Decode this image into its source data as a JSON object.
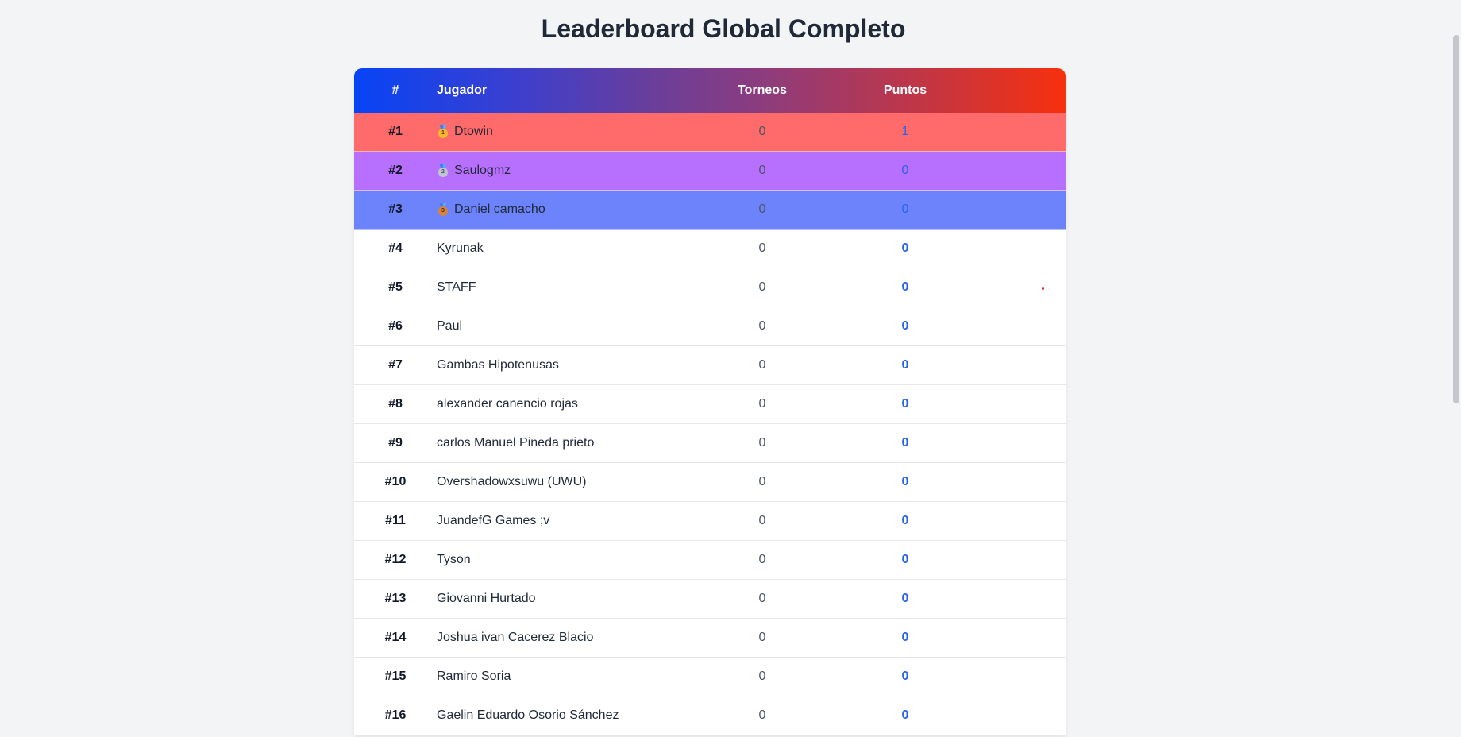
{
  "title": "Leaderboard Global Completo",
  "header": {
    "rank": "#",
    "player": "Jugador",
    "tournaments": "Torneos",
    "points": "Puntos"
  },
  "colors": {
    "rank1": "#ff6b6b",
    "rank2": "#b76ffd",
    "rank3": "#6d83fb",
    "points_blue": "#2563eb"
  },
  "rows": [
    {
      "rank": "#1",
      "name": "Dtowin",
      "tournaments": "0",
      "points": "1",
      "medal": "gold-medal-icon",
      "medal_label": "1"
    },
    {
      "rank": "#2",
      "name": "Saulogmz",
      "tournaments": "0",
      "points": "0",
      "medal": "silver-medal-icon",
      "medal_label": "2"
    },
    {
      "rank": "#3",
      "name": "Daniel camacho",
      "tournaments": "0",
      "points": "0",
      "medal": "bronze-medal-icon",
      "medal_label": "3"
    },
    {
      "rank": "#4",
      "name": "Kyrunak",
      "tournaments": "0",
      "points": "0"
    },
    {
      "rank": "#5",
      "name": "STAFF",
      "tournaments": "0",
      "points": "0"
    },
    {
      "rank": "#6",
      "name": "Paul",
      "tournaments": "0",
      "points": "0"
    },
    {
      "rank": "#7",
      "name": "Gambas Hipotenusas",
      "tournaments": "0",
      "points": "0"
    },
    {
      "rank": "#8",
      "name": "alexander canencio rojas",
      "tournaments": "0",
      "points": "0"
    },
    {
      "rank": "#9",
      "name": "carlos Manuel Pineda prieto",
      "tournaments": "0",
      "points": "0"
    },
    {
      "rank": "#10",
      "name": "Overshadowxsuwu (UWU)",
      "tournaments": "0",
      "points": "0"
    },
    {
      "rank": "#11",
      "name": "JuandefG Games ;v",
      "tournaments": "0",
      "points": "0"
    },
    {
      "rank": "#12",
      "name": "Tyson",
      "tournaments": "0",
      "points": "0"
    },
    {
      "rank": "#13",
      "name": "Giovanni Hurtado",
      "tournaments": "0",
      "points": "0"
    },
    {
      "rank": "#14",
      "name": "Joshua ivan Cacerez Blacio",
      "tournaments": "0",
      "points": "0"
    },
    {
      "rank": "#15",
      "name": "Ramiro Soria",
      "tournaments": "0",
      "points": "0"
    },
    {
      "rank": "#16",
      "name": "Gaelin Eduardo Osorio Sánchez",
      "tournaments": "0",
      "points": "0"
    }
  ]
}
